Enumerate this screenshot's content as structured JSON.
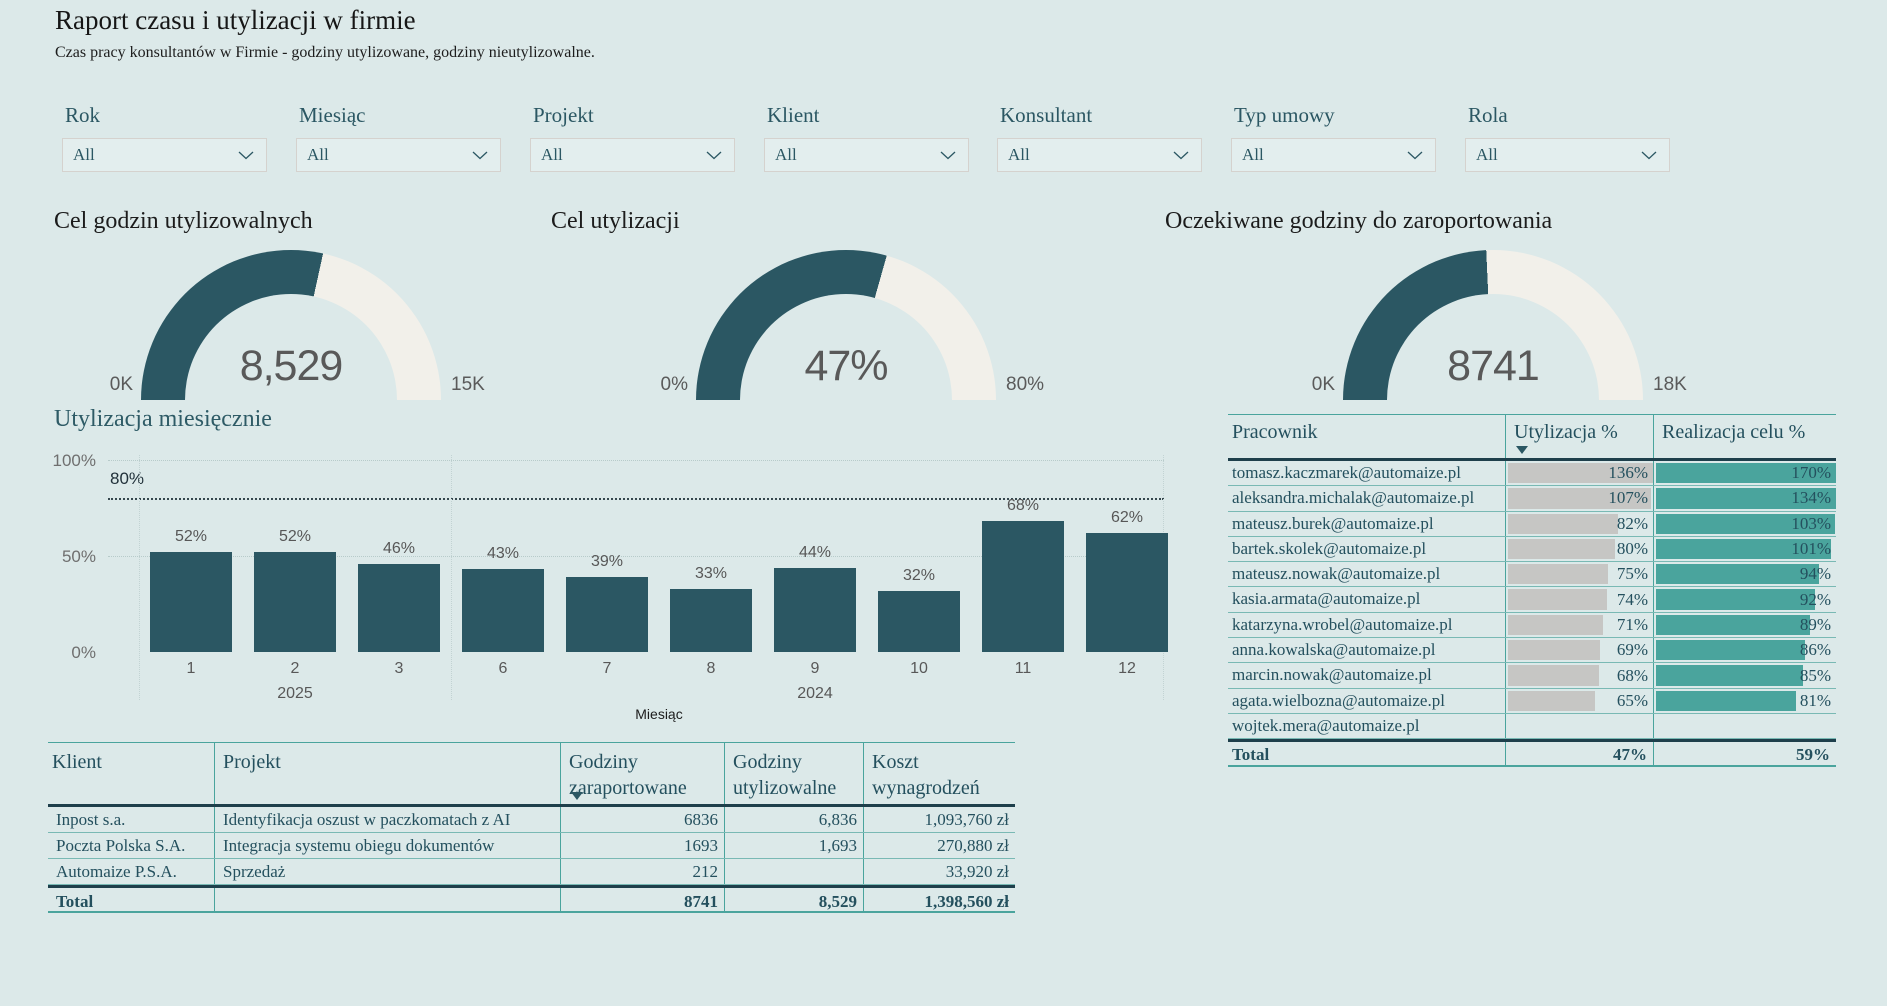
{
  "page": {
    "title": "Raport czasu i utylizacji w firmie",
    "subtitle": "Czas pracy konsultantów w Firmie - godziny utylizowane, godziny nieutylizowalne."
  },
  "colors": {
    "background": "#dce9e9",
    "dark_teal": "#2b5763",
    "accent_teal": "#4aa49d",
    "gauge_track": "#f2f0ea",
    "databar_gray": "#c6c6c4",
    "value_gray": "#595959"
  },
  "filters": [
    {
      "label": "Rok",
      "value": "All"
    },
    {
      "label": "Miesiąc",
      "value": "All"
    },
    {
      "label": "Projekt",
      "value": "All"
    },
    {
      "label": "Klient",
      "value": "All"
    },
    {
      "label": "Konsultant",
      "value": "All"
    },
    {
      "label": "Typ umowy",
      "value": "All"
    },
    {
      "label": "Rola",
      "value": "All"
    }
  ],
  "gauges": [
    {
      "title": "Cel godzin utylizowalnych",
      "value": 8529,
      "value_label": "8,529",
      "min_label": "0K",
      "max_label": "15K",
      "min": 0,
      "max": 15000
    },
    {
      "title": "Cel utylizacji",
      "value": 47,
      "value_label": "47%",
      "min_label": "0%",
      "max_label": "80%",
      "min": 0,
      "max": 80
    },
    {
      "title": "Oczekiwane godziny do zaroportowania",
      "value": 8741,
      "value_label": "8741",
      "min_label": "0K",
      "max_label": "18K",
      "min": 0,
      "max": 18000
    }
  ],
  "chart_data": {
    "type": "bar",
    "title": "Utylizacja miesięcznie",
    "categories": [
      "1",
      "2",
      "3",
      "6",
      "7",
      "8",
      "9",
      "10",
      "11",
      "12"
    ],
    "values": [
      52,
      52,
      46,
      43,
      39,
      33,
      44,
      32,
      68,
      62
    ],
    "unit": "%",
    "xlabel": "Miesiąc",
    "ylabel": "",
    "ylim": [
      0,
      100
    ],
    "yticks": [
      {
        "value": 0,
        "label": "0%"
      },
      {
        "value": 50,
        "label": "50%"
      },
      {
        "value": 100,
        "label": "100%"
      }
    ],
    "target_line": {
      "value": 80,
      "label": "80%"
    },
    "year_groups": [
      {
        "label": "2025",
        "under_category_index": 1
      },
      {
        "label": "2024",
        "under_category_index": 6
      }
    ],
    "grid": true,
    "legend": false
  },
  "employee_table": {
    "columns": [
      "Pracownik",
      "Utylizacja %",
      "Realizacja celu %"
    ],
    "sorted_column": "Utylizacja %",
    "rows": [
      {
        "name": "tomasz.kaczmarek@automaize.pl",
        "utilization": 136,
        "goal": 170
      },
      {
        "name": "aleksandra.michalak@automaize.pl",
        "utilization": 107,
        "goal": 134
      },
      {
        "name": "mateusz.burek@automaize.pl",
        "utilization": 82,
        "goal": 103
      },
      {
        "name": "bartek.skolek@automaize.pl",
        "utilization": 80,
        "goal": 101
      },
      {
        "name": "mateusz.nowak@automaize.pl",
        "utilization": 75,
        "goal": 94
      },
      {
        "name": "kasia.armata@automaize.pl",
        "utilization": 74,
        "goal": 92
      },
      {
        "name": "katarzyna.wrobel@automaize.pl",
        "utilization": 71,
        "goal": 89
      },
      {
        "name": "anna.kowalska@automaize.pl",
        "utilization": 69,
        "goal": 86
      },
      {
        "name": "marcin.nowak@automaize.pl",
        "utilization": 68,
        "goal": 85
      },
      {
        "name": "agata.wielbozna@automaize.pl",
        "utilization": 65,
        "goal": 81
      },
      {
        "name": "wojtek.mera@automaize.pl",
        "utilization": null,
        "goal": null
      }
    ],
    "total": {
      "label": "Total",
      "utilization": "47%",
      "goal": "59%"
    }
  },
  "project_table": {
    "columns": [
      "Klient",
      "Projekt",
      "Godziny zaraportowane",
      "Godziny utylizowalne",
      "Koszt wynagrodzeń"
    ],
    "sorted_column": "Godziny zaraportowane",
    "rows": [
      {
        "klient": "Inpost s.a.",
        "projekt": "Identyfikacja oszust w paczkomatach z AI",
        "zaraportowane": "6836",
        "utylizowalne": "6,836",
        "koszt": "1,093,760 zł"
      },
      {
        "klient": "Poczta Polska S.A.",
        "projekt": "Integracja systemu obiegu dokumentów",
        "zaraportowane": "1693",
        "utylizowalne": "1,693",
        "koszt": "270,880 zł"
      },
      {
        "klient": "Automaize P.S.A.",
        "projekt": "Sprzedaż",
        "zaraportowane": "212",
        "utylizowalne": "",
        "koszt": "33,920 zł"
      }
    ],
    "total": {
      "label": "Total",
      "zaraportowane": "8741",
      "utylizowalne": "8,529",
      "koszt": "1,398,560 zł"
    }
  }
}
